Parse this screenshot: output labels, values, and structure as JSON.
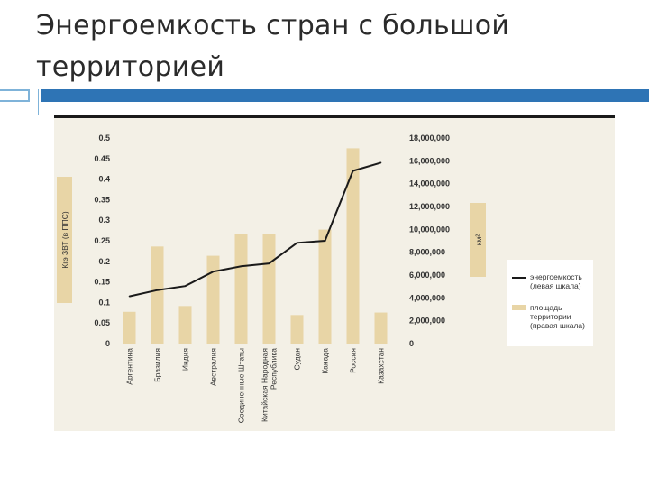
{
  "slide": {
    "title": "Энергоемкость стран с большой территорией"
  },
  "colors": {
    "accent_bar": "#2e74b5",
    "panel_bg": "#f3f0e6",
    "bar_fill": "#e8d5a6",
    "line": "#1a1a1a",
    "label_box": "#e8d5a6"
  },
  "chart_data": {
    "type": "bar",
    "title": "",
    "categories": [
      "Аргентина",
      "Бразилия",
      "Индия",
      "Австралия",
      "Соединенные Штаты",
      "Китайская Народная Республика",
      "Судан",
      "Канада",
      "Россия",
      "Казахстан"
    ],
    "category_lines": [
      [
        "Аргентина"
      ],
      [
        "Бразилия"
      ],
      [
        "Индия"
      ],
      [
        "Австралия"
      ],
      [
        "Соединенные Штаты"
      ],
      [
        "Китайская Народная",
        "Республика"
      ],
      [
        "Судан"
      ],
      [
        "Канада"
      ],
      [
        "Россия"
      ],
      [
        "Казахстан"
      ]
    ],
    "ylabel_left": "Кгэ ЗВТ (в ППС)",
    "ylabel_right": "км²",
    "ylim_left": [
      0,
      0.5
    ],
    "ylim_right": [
      0,
      18000000
    ],
    "left_ticks": [
      "0",
      "0.05",
      "0.1",
      "0.15",
      "0.2",
      "0.25",
      "0.3",
      "0.35",
      "0.4",
      "0.45",
      "0.5"
    ],
    "right_ticks": [
      "0",
      "2,000,000",
      "4,000,000",
      "6,000,000",
      "8,000,000",
      "10,000,000",
      "12,000,000",
      "14,000,000",
      "16,000,000",
      "18,000,000"
    ],
    "series": [
      {
        "name": "площадь территории (правая шкала)",
        "kind": "bar",
        "axis": "right",
        "values": [
          2780000,
          8500000,
          3290000,
          7690000,
          9630000,
          9600000,
          2500000,
          9980000,
          17100000,
          2720000
        ]
      },
      {
        "name": "энергоемкость (левая шкала)",
        "kind": "line",
        "axis": "left",
        "values": [
          0.115,
          0.13,
          0.14,
          0.175,
          0.188,
          0.195,
          0.245,
          0.25,
          0.42,
          0.44
        ]
      }
    ],
    "legend": {
      "placement": "right",
      "line_label": [
        "энергоемкость",
        "(левая шкала)"
      ],
      "bar_label": [
        "площадь",
        "территории",
        "(правая шкала)"
      ]
    },
    "grid": false
  }
}
